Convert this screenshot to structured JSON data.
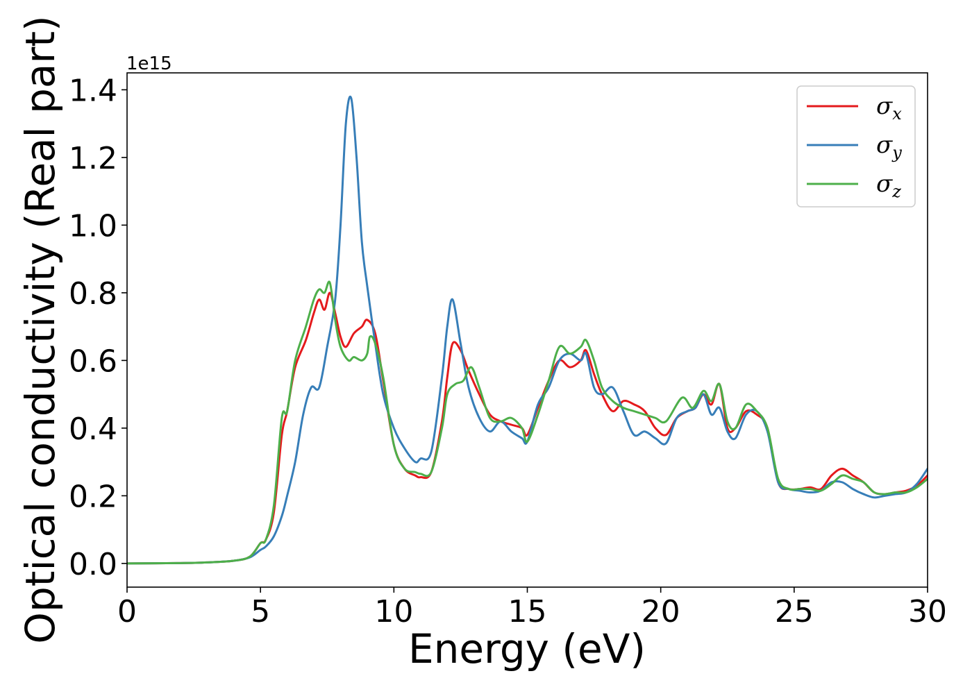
{
  "chart_data": {
    "type": "line",
    "xlabel": "Energy (eV)",
    "ylabel": "Optical conductivity (Real part)",
    "y_offset_label": "1e15",
    "xlim": [
      0,
      30
    ],
    "ylim": [
      -0.07,
      1.45
    ],
    "xticks": [
      0,
      5,
      10,
      15,
      20,
      25,
      30
    ],
    "xtick_labels": [
      "0",
      "5",
      "10",
      "15",
      "20",
      "25",
      "30"
    ],
    "yticks": [
      0.0,
      0.2,
      0.4,
      0.6,
      0.8,
      1.0,
      1.2,
      1.4
    ],
    "ytick_labels": [
      "0.0",
      "0.2",
      "0.4",
      "0.6",
      "0.8",
      "1.0",
      "1.2",
      "1.4"
    ],
    "grid": false,
    "legend_position": "top-right",
    "series": [
      {
        "name": "σx",
        "symbol": "σ",
        "subscript": "x",
        "color": "#e41a1c",
        "x": [
          0,
          2,
          3,
          4,
          4.6,
          5.0,
          5.2,
          5.5,
          5.8,
          6.0,
          6.3,
          6.7,
          7.0,
          7.2,
          7.4,
          7.6,
          7.8,
          8.0,
          8.2,
          8.5,
          8.8,
          9.0,
          9.3,
          9.6,
          10.0,
          10.4,
          10.8,
          11.0,
          11.4,
          11.8,
          12.0,
          12.2,
          12.5,
          12.8,
          13.2,
          13.6,
          14.0,
          14.4,
          14.8,
          15.0,
          15.4,
          15.8,
          16.2,
          16.6,
          17.0,
          17.2,
          17.5,
          17.8,
          18.2,
          18.6,
          19.0,
          19.4,
          19.8,
          20.2,
          20.6,
          21.0,
          21.3,
          21.6,
          21.9,
          22.2,
          22.5,
          22.8,
          23.2,
          23.6,
          24.0,
          24.4,
          24.8,
          25.2,
          25.6,
          26.0,
          26.4,
          26.8,
          27.2,
          27.6,
          28.0,
          28.4,
          28.8,
          29.2,
          29.6,
          30.0
        ],
        "y": [
          0.0,
          0.001,
          0.003,
          0.008,
          0.02,
          0.06,
          0.07,
          0.15,
          0.38,
          0.45,
          0.58,
          0.66,
          0.74,
          0.78,
          0.75,
          0.8,
          0.74,
          0.67,
          0.64,
          0.68,
          0.7,
          0.72,
          0.68,
          0.54,
          0.35,
          0.28,
          0.26,
          0.255,
          0.27,
          0.42,
          0.55,
          0.65,
          0.63,
          0.57,
          0.5,
          0.44,
          0.42,
          0.41,
          0.4,
          0.38,
          0.46,
          0.54,
          0.6,
          0.58,
          0.6,
          0.63,
          0.56,
          0.5,
          0.45,
          0.48,
          0.47,
          0.45,
          0.4,
          0.38,
          0.43,
          0.45,
          0.46,
          0.5,
          0.47,
          0.53,
          0.4,
          0.4,
          0.45,
          0.44,
          0.4,
          0.24,
          0.22,
          0.22,
          0.225,
          0.22,
          0.26,
          0.28,
          0.26,
          0.24,
          0.21,
          0.205,
          0.21,
          0.215,
          0.23,
          0.26
        ]
      },
      {
        "name": "σy",
        "symbol": "σ",
        "subscript": "y",
        "color": "#377eb8",
        "x": [
          0,
          2,
          3,
          4,
          4.6,
          5.0,
          5.2,
          5.5,
          5.8,
          6.0,
          6.3,
          6.6,
          6.9,
          7.2,
          7.5,
          7.8,
          8.0,
          8.2,
          8.4,
          8.6,
          8.8,
          9.0,
          9.3,
          9.6,
          10.0,
          10.4,
          10.8,
          11.0,
          11.4,
          11.8,
          12.0,
          12.2,
          12.5,
          12.8,
          13.2,
          13.6,
          14.0,
          14.4,
          14.8,
          15.0,
          15.4,
          15.8,
          16.2,
          16.6,
          17.0,
          17.2,
          17.5,
          17.8,
          18.2,
          18.6,
          19.0,
          19.4,
          19.8,
          20.2,
          20.6,
          21.0,
          21.3,
          21.6,
          21.9,
          22.2,
          22.5,
          22.8,
          23.2,
          23.6,
          24.0,
          24.4,
          24.8,
          25.2,
          25.6,
          26.0,
          26.4,
          26.8,
          27.2,
          27.6,
          28.0,
          28.4,
          28.8,
          29.2,
          29.6,
          30.0
        ],
        "y": [
          0.0,
          0.001,
          0.003,
          0.008,
          0.018,
          0.04,
          0.05,
          0.08,
          0.14,
          0.2,
          0.3,
          0.44,
          0.52,
          0.52,
          0.64,
          0.78,
          1.0,
          1.3,
          1.375,
          1.2,
          0.95,
          0.82,
          0.65,
          0.5,
          0.4,
          0.34,
          0.3,
          0.31,
          0.33,
          0.55,
          0.7,
          0.78,
          0.65,
          0.52,
          0.43,
          0.39,
          0.42,
          0.39,
          0.37,
          0.36,
          0.47,
          0.52,
          0.6,
          0.62,
          0.6,
          0.62,
          0.52,
          0.5,
          0.52,
          0.45,
          0.38,
          0.39,
          0.37,
          0.355,
          0.43,
          0.45,
          0.46,
          0.5,
          0.44,
          0.46,
          0.39,
          0.37,
          0.44,
          0.45,
          0.39,
          0.24,
          0.22,
          0.215,
          0.21,
          0.215,
          0.24,
          0.24,
          0.22,
          0.205,
          0.195,
          0.2,
          0.205,
          0.21,
          0.235,
          0.28
        ]
      },
      {
        "name": "σz",
        "symbol": "σ",
        "subscript": "z",
        "color": "#4daf4a",
        "x": [
          0,
          2,
          3,
          4,
          4.6,
          5.0,
          5.2,
          5.5,
          5.8,
          6.0,
          6.3,
          6.7,
          7.0,
          7.2,
          7.4,
          7.6,
          7.8,
          8.0,
          8.3,
          8.5,
          8.8,
          9.0,
          9.1,
          9.3,
          9.6,
          10.0,
          10.4,
          10.8,
          11.0,
          11.4,
          11.8,
          12.0,
          12.3,
          12.6,
          12.9,
          13.2,
          13.6,
          14.0,
          14.4,
          14.8,
          15.0,
          15.4,
          15.8,
          16.2,
          16.6,
          17.0,
          17.2,
          17.5,
          17.8,
          18.2,
          18.6,
          19.0,
          19.4,
          19.8,
          20.2,
          20.8,
          21.2,
          21.6,
          21.9,
          22.2,
          22.5,
          22.8,
          23.2,
          23.6,
          24.0,
          24.4,
          24.8,
          25.2,
          25.6,
          26.0,
          26.4,
          26.8,
          27.2,
          27.6,
          28.0,
          28.4,
          28.8,
          29.2,
          29.6,
          30.0
        ],
        "y": [
          0.0,
          0.001,
          0.003,
          0.008,
          0.02,
          0.06,
          0.07,
          0.17,
          0.43,
          0.45,
          0.6,
          0.7,
          0.78,
          0.81,
          0.8,
          0.83,
          0.72,
          0.64,
          0.6,
          0.61,
          0.6,
          0.62,
          0.67,
          0.65,
          0.55,
          0.35,
          0.28,
          0.27,
          0.265,
          0.27,
          0.4,
          0.5,
          0.53,
          0.54,
          0.58,
          0.52,
          0.43,
          0.42,
          0.43,
          0.4,
          0.36,
          0.44,
          0.54,
          0.64,
          0.62,
          0.64,
          0.66,
          0.6,
          0.52,
          0.48,
          0.46,
          0.45,
          0.44,
          0.43,
          0.42,
          0.49,
          0.46,
          0.51,
          0.48,
          0.53,
          0.42,
          0.4,
          0.47,
          0.45,
          0.4,
          0.25,
          0.22,
          0.22,
          0.22,
          0.215,
          0.235,
          0.26,
          0.25,
          0.24,
          0.21,
          0.205,
          0.21,
          0.21,
          0.225,
          0.25
        ]
      }
    ]
  }
}
